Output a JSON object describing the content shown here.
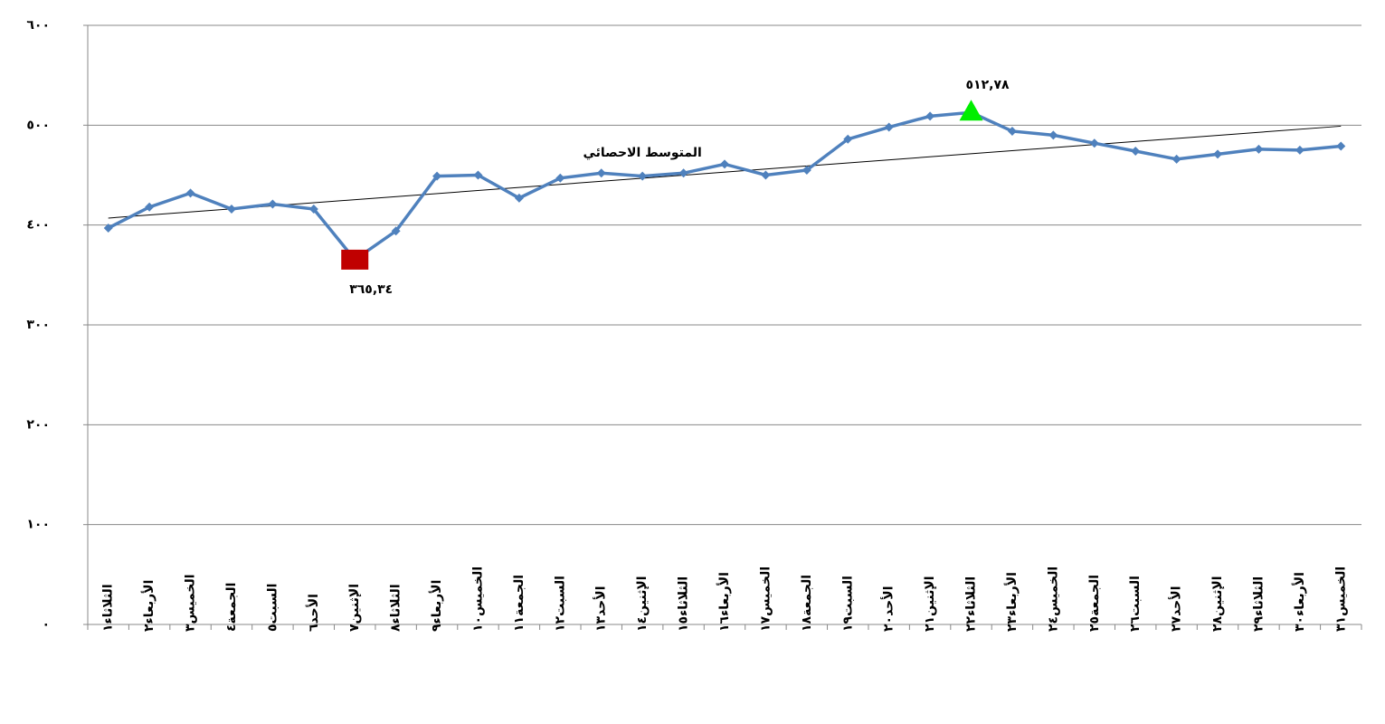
{
  "chart_data": {
    "type": "line",
    "categories": [
      "الثلاثاء١",
      "الأربعاء٢",
      "الخميس٣",
      "الجمعة٤",
      "السبت٥",
      "الأحد٦",
      "الإثنين٧",
      "الثلاثاء٨",
      "الأربعاء٩",
      "الخميس١٠",
      "الجمعة١١",
      "السبت١٢",
      "الأحد١٣",
      "الإثنين١٤",
      "الثلاثاء١٥",
      "الأربعاء١٦",
      "الخميس١٧",
      "الجمعة١٨",
      "السبت١٩",
      "الأحد٢٠",
      "الإثنين٢١",
      "الثلاثاء٢٢",
      "الأربعاء٢٣",
      "الخميس٢٤",
      "الجمعة٢٥",
      "السبت٢٦",
      "الأحد٢٧",
      "الإثنين٢٨",
      "الثلاثاء٢٩",
      "الأربعاء٣٠",
      "الخميس٣١"
    ],
    "series": [
      {
        "color": "#4f81bd",
        "values": [
          397,
          418,
          432,
          416,
          421,
          416,
          365.34,
          394,
          449,
          450,
          427,
          447,
          452,
          449,
          452,
          461,
          450,
          455,
          486,
          498,
          509,
          512.78,
          494,
          490,
          482,
          474,
          466,
          471,
          476,
          475,
          479
        ],
        "value_labels": [
          null,
          null,
          null,
          null,
          null,
          null,
          "٣٦٥,٣٤",
          null,
          null,
          null,
          null,
          null,
          null,
          null,
          null,
          null,
          null,
          null,
          null,
          null,
          null,
          "٥١٢,٧٨",
          null,
          null,
          null,
          null,
          null,
          null,
          null,
          null,
          null
        ],
        "markers": [
          {
            "index": 6,
            "shape": "square",
            "color": "#c00000"
          },
          {
            "index": 21,
            "shape": "triangle",
            "color": "#00ee00"
          }
        ]
      }
    ],
    "trendline": {
      "name": "المتوسط الاحصائي",
      "start": 407,
      "end": 499,
      "color": "#000000"
    },
    "ylim": [
      0,
      600
    ],
    "yticks": [
      {
        "value": 0,
        "label": "٠"
      },
      {
        "value": 100,
        "label": "١٠٠"
      },
      {
        "value": 200,
        "label": "٢٠٠"
      },
      {
        "value": 300,
        "label": "٣٠٠"
      },
      {
        "value": 400,
        "label": "٤٠٠"
      },
      {
        "value": 500,
        "label": "٥٠٠"
      },
      {
        "value": 600,
        "label": "٦٠٠"
      }
    ],
    "grid": true
  }
}
